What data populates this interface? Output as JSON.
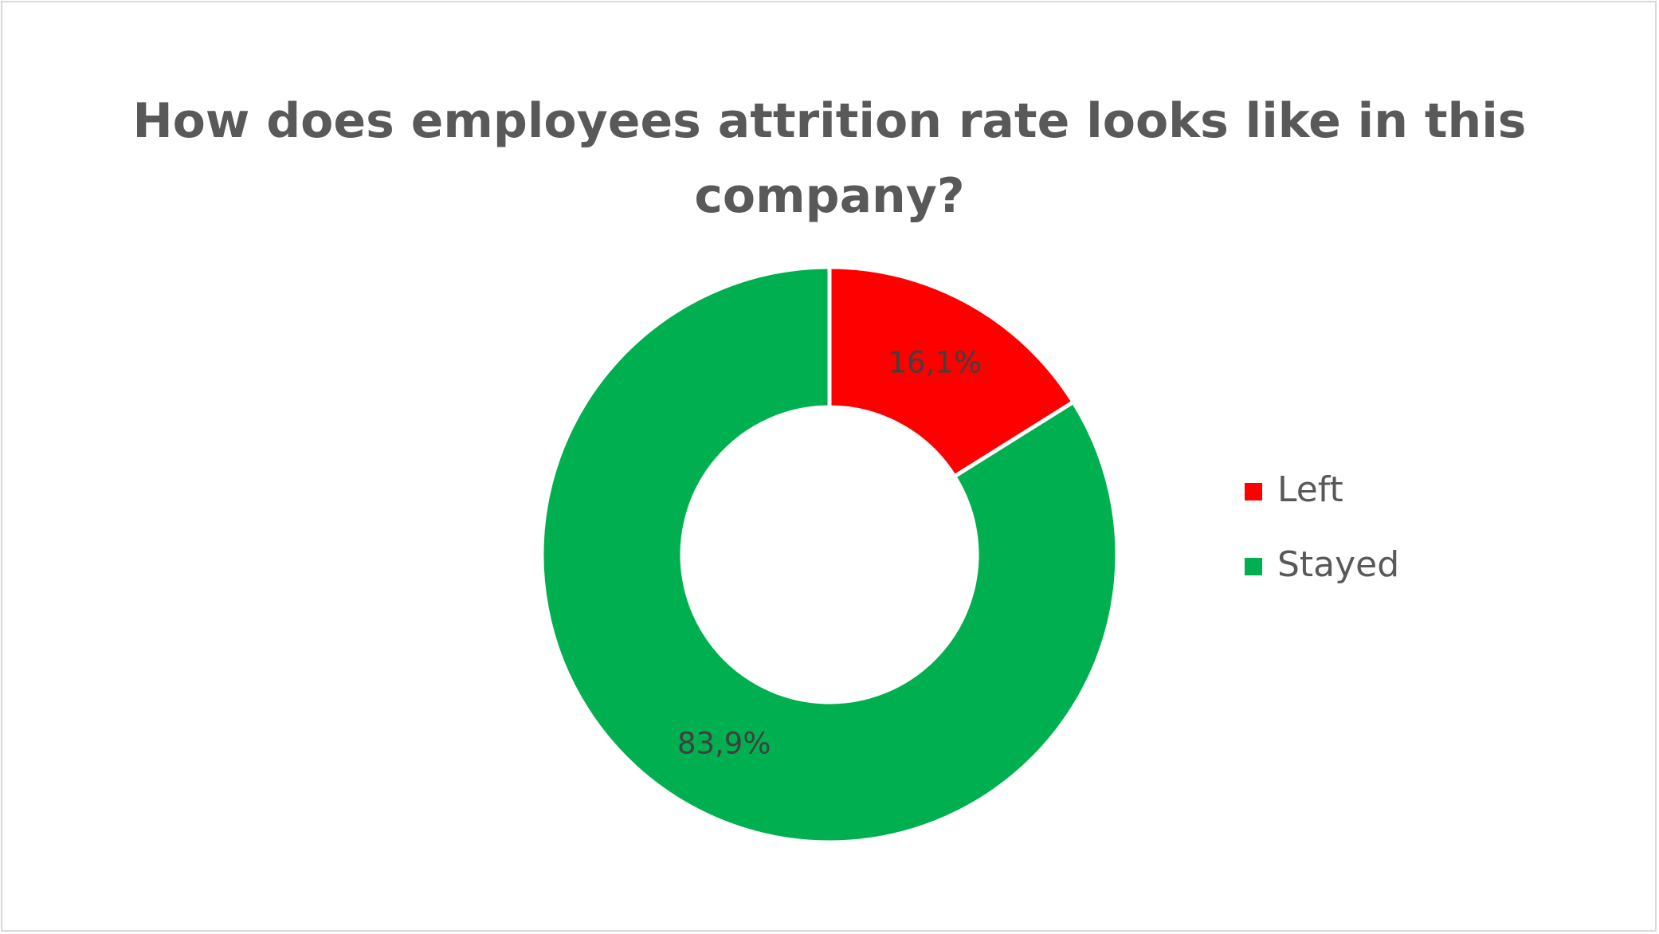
{
  "chart_data": {
    "type": "pie",
    "variant": "doughnut",
    "title_lines": [
      "How does employees attrition rate looks like in this",
      "company?"
    ],
    "series": [
      {
        "name": "Left",
        "value": 16.1,
        "label": "16,1%",
        "color": "#ff0000"
      },
      {
        "name": "Stayed",
        "value": 83.9,
        "label": "83,9%",
        "color": "#00b050"
      }
    ],
    "legend_position": "right",
    "start_angle": "top, clockwise",
    "label_color": "#404040",
    "legend_text_color": "#595959",
    "border_color": "#d9d9d9"
  }
}
